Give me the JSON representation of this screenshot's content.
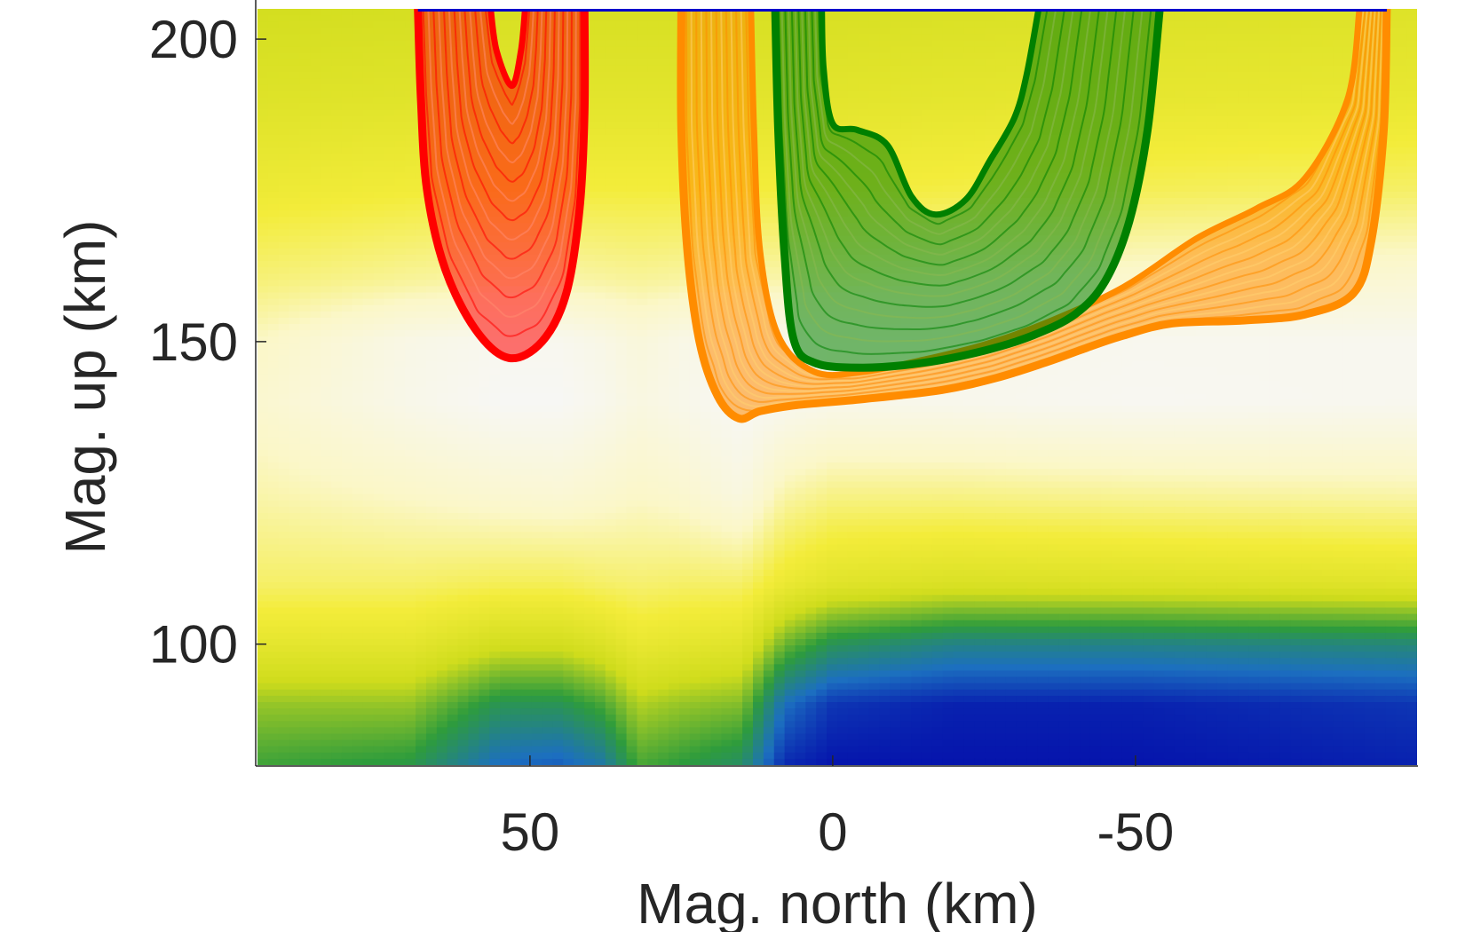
{
  "chart_data": {
    "type": "heatmap",
    "title": "",
    "xlabel": "Mag. north (km)",
    "ylabel": "Mag. up (km)",
    "x_reversed": true,
    "xlim": [
      95.0,
      -96.5
    ],
    "ylim": [
      80,
      205
    ],
    "x_ticks": [
      50,
      0,
      -50
    ],
    "x_tick_labels": [
      "50",
      "0",
      "-50"
    ],
    "y_ticks": [
      100,
      150,
      200
    ],
    "y_tick_labels": [
      "100",
      "150",
      "200"
    ],
    "colormap": [
      "#0000a8",
      "#1c6fc0",
      "#2e9c3c",
      "#cfdc1c",
      "#f3ec3a",
      "#fbf7c8",
      "#f7f7f7"
    ],
    "background_field": {
      "description_levels": "relative value 0 (blue) to 1 (white)",
      "x": [
        95,
        70,
        55,
        45,
        38,
        32,
        25,
        15,
        8,
        0,
        -20,
        -50,
        -96.5
      ],
      "profiles": [
        {
          "y": 80,
          "v": [
            0.35,
            0.32,
            0.16,
            0.14,
            0.2,
            0.36,
            0.33,
            0.28,
            0.06,
            0.03,
            0.03,
            0.03,
            0.05
          ]
        },
        {
          "y": 90,
          "v": [
            0.44,
            0.44,
            0.3,
            0.3,
            0.36,
            0.47,
            0.44,
            0.42,
            0.17,
            0.08,
            0.05,
            0.05,
            0.08
          ]
        },
        {
          "y": 100,
          "v": [
            0.6,
            0.6,
            0.52,
            0.52,
            0.56,
            0.62,
            0.6,
            0.58,
            0.4,
            0.3,
            0.24,
            0.24,
            0.26
          ]
        },
        {
          "y": 110,
          "v": [
            0.72,
            0.72,
            0.7,
            0.7,
            0.72,
            0.73,
            0.72,
            0.72,
            0.63,
            0.58,
            0.55,
            0.56,
            0.58
          ]
        },
        {
          "y": 125,
          "v": [
            0.8,
            0.84,
            0.87,
            0.88,
            0.86,
            0.84,
            0.86,
            0.92,
            0.8,
            0.76,
            0.76,
            0.78,
            0.8
          ]
        },
        {
          "y": 140,
          "v": [
            0.86,
            0.95,
            0.99,
            0.99,
            0.96,
            0.92,
            0.95,
            0.99,
            0.97,
            0.95,
            0.96,
            0.98,
            0.97
          ]
        },
        {
          "y": 150,
          "v": [
            0.83,
            0.94,
            0.97,
            0.97,
            0.94,
            0.9,
            0.94,
            0.96,
            0.96,
            0.94,
            0.95,
            0.97,
            0.97
          ]
        },
        {
          "y": 160,
          "v": [
            0.74,
            0.78,
            0.8,
            0.8,
            0.79,
            0.78,
            0.79,
            0.8,
            0.8,
            0.8,
            0.82,
            0.86,
            0.88
          ]
        },
        {
          "y": 175,
          "v": [
            0.64,
            0.66,
            0.67,
            0.67,
            0.67,
            0.67,
            0.67,
            0.67,
            0.67,
            0.67,
            0.68,
            0.7,
            0.72
          ]
        },
        {
          "y": 190,
          "v": [
            0.57,
            0.58,
            0.59,
            0.59,
            0.59,
            0.59,
            0.59,
            0.59,
            0.59,
            0.59,
            0.6,
            0.61,
            0.62
          ]
        },
        {
          "y": 205,
          "v": [
            0.52,
            0.53,
            0.54,
            0.54,
            0.54,
            0.54,
            0.54,
            0.54,
            0.54,
            0.54,
            0.55,
            0.56,
            0.57
          ]
        }
      ]
    },
    "series": [
      {
        "color": "#ff0000",
        "fill_inner": "#ff8a70",
        "outer": [
          [
            68.5,
            205
          ],
          [
            68,
            190
          ],
          [
            67,
            175
          ],
          [
            64,
            162
          ],
          [
            59,
            152
          ],
          [
            53.5,
            147.3
          ],
          [
            48,
            150
          ],
          [
            44,
            158
          ],
          [
            41.8,
            172
          ],
          [
            41,
            188
          ],
          [
            41,
            205
          ]
        ],
        "inner": [
          [
            56.5,
            205
          ],
          [
            55.5,
            198
          ],
          [
            53,
            192.3
          ],
          [
            51.5,
            198
          ],
          [
            50.8,
            205
          ]
        ]
      },
      {
        "color": "#ff8c00",
        "fill_inner": "#ffd070",
        "outer": [
          [
            25,
            205
          ],
          [
            25,
            185
          ],
          [
            24,
            165
          ],
          [
            22,
            150
          ],
          [
            19,
            141
          ],
          [
            15.5,
            137.3
          ],
          [
            12,
            138.5
          ],
          [
            6,
            139.5
          ],
          [
            -5,
            140.5
          ],
          [
            -18,
            142
          ],
          [
            -27,
            144
          ],
          [
            -35,
            146.5
          ],
          [
            -42,
            149
          ],
          [
            -48,
            151
          ],
          [
            -56,
            153
          ],
          [
            -68,
            153.5
          ],
          [
            -78,
            154.5
          ],
          [
            -86,
            158
          ],
          [
            -89,
            167
          ],
          [
            -91,
            185
          ],
          [
            -91.5,
            205
          ]
        ],
        "inner": [
          [
            13.5,
            205
          ],
          [
            13,
            185
          ],
          [
            12,
            165
          ],
          [
            9,
            151
          ],
          [
            3,
            145
          ],
          [
            -5,
            145
          ],
          [
            -15,
            147
          ],
          [
            -25,
            149.5
          ],
          [
            -35,
            153
          ],
          [
            -48,
            159
          ],
          [
            -60,
            167
          ],
          [
            -70,
            172
          ],
          [
            -78,
            177
          ],
          [
            -85,
            190
          ],
          [
            -87,
            205
          ]
        ]
      },
      {
        "color": "#008000",
        "fill_inner": "#8ab850",
        "outer": [
          [
            9.5,
            205
          ],
          [
            9,
            185
          ],
          [
            8,
            165
          ],
          [
            6.5,
            150.5
          ],
          [
            3,
            146.5
          ],
          [
            -5,
            145.7
          ],
          [
            -15,
            146.5
          ],
          [
            -25,
            148.5
          ],
          [
            -33,
            151
          ],
          [
            -40,
            154.5
          ],
          [
            -45,
            160
          ],
          [
            -49,
            170
          ],
          [
            -52,
            185
          ],
          [
            -54,
            205
          ]
        ],
        "inner": [
          [
            1.8,
            205
          ],
          [
            1.5,
            195
          ],
          [
            0,
            186
          ],
          [
            -4,
            185
          ],
          [
            -9,
            182.5
          ],
          [
            -13,
            174
          ],
          [
            -17,
            171
          ],
          [
            -22,
            173.5
          ],
          [
            -26,
            180
          ],
          [
            -30,
            187
          ],
          [
            -32,
            194
          ],
          [
            -34,
            205
          ]
        ]
      }
    ],
    "top_boundary_color": "#0000cc"
  }
}
